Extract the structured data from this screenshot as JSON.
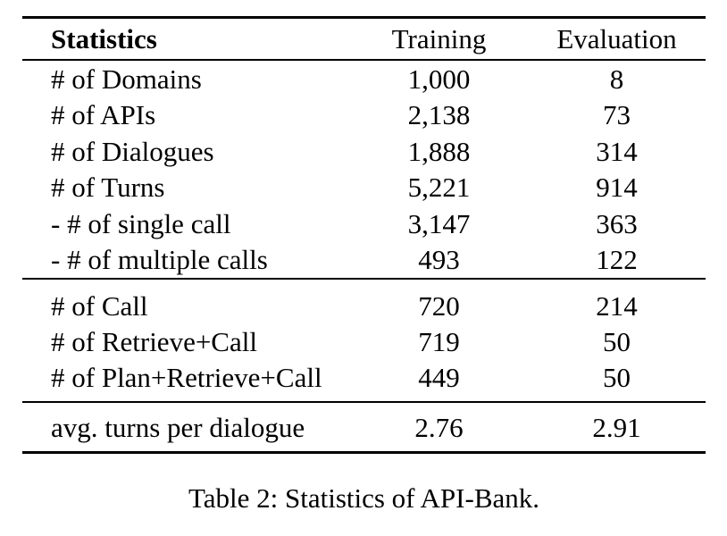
{
  "table": {
    "header": {
      "statistics": "Statistics",
      "training": "Training",
      "evaluation": "Evaluation"
    },
    "sections": [
      {
        "rows": [
          {
            "label": "# of Domains",
            "training": "1,000",
            "evaluation": "8"
          },
          {
            "label": "# of APIs",
            "training": "2,138",
            "evaluation": "73"
          },
          {
            "label": "# of Dialogues",
            "training": "1,888",
            "evaluation": "314"
          },
          {
            "label": "# of Turns",
            "training": "5,221",
            "evaluation": "914"
          },
          {
            "label": "- # of single call",
            "training": "3,147",
            "evaluation": "363"
          },
          {
            "label": "- # of multiple calls",
            "training": "493",
            "evaluation": "122"
          }
        ]
      },
      {
        "rows": [
          {
            "label": "# of Call",
            "training": "720",
            "evaluation": "214"
          },
          {
            "label": "# of Retrieve+Call",
            "training": "719",
            "evaluation": "50"
          },
          {
            "label": "# of Plan+Retrieve+Call",
            "training": "449",
            "evaluation": "50"
          }
        ]
      },
      {
        "rows": [
          {
            "label": "avg. turns per dialogue",
            "training": "2.76",
            "evaluation": "2.91"
          }
        ]
      }
    ]
  },
  "caption": "Table 2: Statistics of API-Bank.",
  "colors": {
    "text": "#000000",
    "background": "#ffffff",
    "rule": "#000000"
  }
}
